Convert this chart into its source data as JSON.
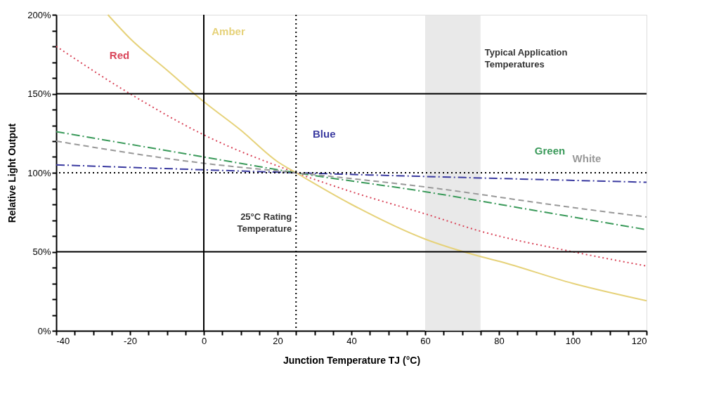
{
  "chart_data": {
    "type": "line",
    "xlabel": "Junction Temperature TJ (°C)",
    "ylabel": "Relative Light Output",
    "xlim": [
      -40,
      120
    ],
    "ylim": [
      0,
      200
    ],
    "xticks": [
      -40,
      {
        "value": -35,
        "label": null
      },
      {
        "value": -30,
        "label": null
      },
      {
        "value": -25,
        "label": null
      },
      -20,
      {
        "value": -15,
        "label": null
      },
      {
        "value": -10,
        "label": null
      },
      {
        "value": -5,
        "label": null
      },
      0,
      {
        "value": 5,
        "label": null
      },
      {
        "value": 10,
        "label": null
      },
      {
        "value": 15,
        "label": null
      },
      20,
      {
        "value": 25,
        "label": null
      },
      {
        "value": 30,
        "label": null
      },
      {
        "value": 35,
        "label": null
      },
      40,
      {
        "value": 45,
        "label": null
      },
      {
        "value": 50,
        "label": null
      },
      {
        "value": 55,
        "label": null
      },
      60,
      {
        "value": 65,
        "label": null
      },
      {
        "value": 70,
        "label": null
      },
      {
        "value": 75,
        "label": null
      },
      80,
      {
        "value": 85,
        "label": null
      },
      {
        "value": 90,
        "label": null
      },
      {
        "value": 95,
        "label": null
      },
      100,
      {
        "value": 105,
        "label": null
      },
      {
        "value": 110,
        "label": null
      },
      {
        "value": 115,
        "label": null
      },
      120
    ],
    "yticks": [
      {
        "value": 0,
        "label": "0%"
      },
      {
        "value": 10,
        "label": null
      },
      {
        "value": 20,
        "label": null
      },
      {
        "value": 30,
        "label": null
      },
      {
        "value": 40,
        "label": null
      },
      {
        "value": 50,
        "label": "50%"
      },
      {
        "value": 60,
        "label": null
      },
      {
        "value": 70,
        "label": null
      },
      {
        "value": 80,
        "label": null
      },
      {
        "value": 90,
        "label": null
      },
      {
        "value": 100,
        "label": "100%"
      },
      {
        "value": 110,
        "label": null
      },
      {
        "value": 120,
        "label": null
      },
      {
        "value": 130,
        "label": null
      },
      {
        "value": 140,
        "label": null
      },
      {
        "value": 150,
        "label": "150%"
      },
      {
        "value": 160,
        "label": null
      },
      {
        "value": 170,
        "label": null
      },
      {
        "value": 180,
        "label": null
      },
      {
        "value": 190,
        "label": null
      },
      {
        "value": 200,
        "label": "200%"
      }
    ],
    "grid": false,
    "marker": "none",
    "series": [
      {
        "name": "Red",
        "color": "#d9465a",
        "line_style": "dotted",
        "x": [
          -40,
          -20,
          0,
          25,
          40,
          60,
          75,
          100,
          120
        ],
        "values": [
          180,
          150,
          124,
          100,
          88,
          74,
          63,
          50,
          41
        ]
      },
      {
        "name": "Amber",
        "color": "#e6d27a",
        "line_style": "solid",
        "x": [
          -26,
          -20,
          -10,
          0,
          10,
          20,
          25,
          40,
          60,
          75,
          80,
          100,
          120
        ],
        "values": [
          200,
          185,
          165,
          145,
          127,
          107,
          100,
          80,
          58,
          47,
          44,
          30,
          19
        ]
      },
      {
        "name": "Blue",
        "color": "#3a3aa0",
        "line_style": "dashdot",
        "x": [
          -40,
          25,
          120
        ],
        "values": [
          105,
          100,
          94
        ]
      },
      {
        "name": "Green",
        "color": "#3a9a5a",
        "line_style": "dashdot",
        "x": [
          -40,
          0,
          25,
          60,
          90,
          120
        ],
        "values": [
          126,
          110,
          100,
          88,
          76,
          64
        ]
      },
      {
        "name": "White",
        "color": "#999999",
        "line_style": "dashed",
        "x": [
          -40,
          0,
          25,
          60,
          100,
          120
        ],
        "values": [
          120,
          106,
          100,
          91,
          78,
          72
        ]
      }
    ],
    "ref_lines": [
      {
        "axis": "y",
        "value": 50,
        "color": "#000000",
        "line_style": "solid"
      },
      {
        "axis": "y",
        "value": 150,
        "color": "#000000",
        "line_style": "solid"
      },
      {
        "axis": "x",
        "value": 0,
        "color": "#000000",
        "line_style": "solid"
      },
      {
        "axis": "y",
        "value": 100,
        "color": "#000000",
        "line_style": "dotted"
      },
      {
        "axis": "x",
        "value": 25,
        "color": "#000000",
        "line_style": "dotted",
        "label": "25°C Rating Temperature"
      }
    ],
    "bands": [
      {
        "axis": "x",
        "from": 60,
        "to": 75,
        "color": "#e3e3e3",
        "label": "Typical Application Temperatures"
      }
    ]
  }
}
